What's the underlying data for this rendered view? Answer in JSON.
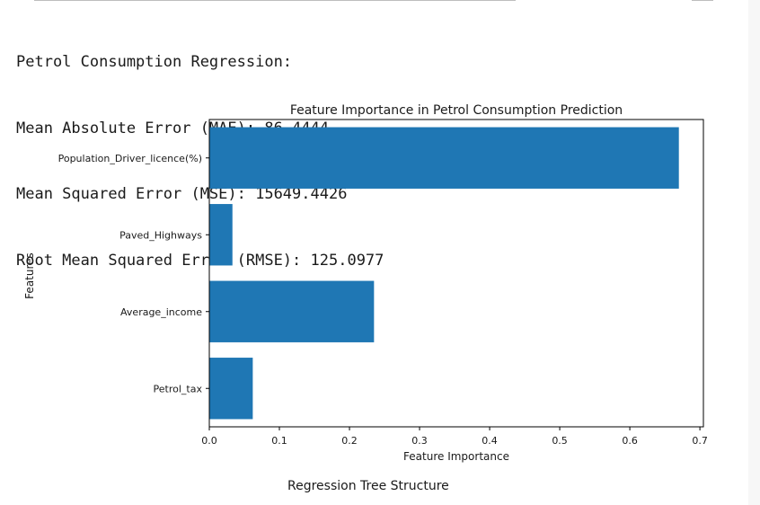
{
  "output": {
    "heading": "Petrol Consumption Regression:",
    "mae_line": "Mean Absolute Error (MAE): 86.4444",
    "mse_line": "Mean Squared Error (MSE): 15649.4426",
    "rmse_line": "Root Mean Squared Error (RMSE): 125.0977"
  },
  "chart_data": {
    "type": "bar",
    "orientation": "horizontal",
    "title": "Feature Importance in Petrol Consumption Prediction",
    "xlabel": "Feature Importance",
    "ylabel": "Features",
    "categories": [
      "Petrol_tax",
      "Average_income",
      "Paved_Highways",
      "Population_Driver_licence(%)"
    ],
    "values": [
      0.062,
      0.235,
      0.033,
      0.67
    ],
    "xlim": [
      0,
      0.705
    ],
    "xticks": [
      "0.0",
      "0.1",
      "0.2",
      "0.3",
      "0.4",
      "0.5",
      "0.6",
      "0.7"
    ],
    "bar_color": "#1f77b4",
    "grid": false
  },
  "caption": "Regression Tree Structure"
}
